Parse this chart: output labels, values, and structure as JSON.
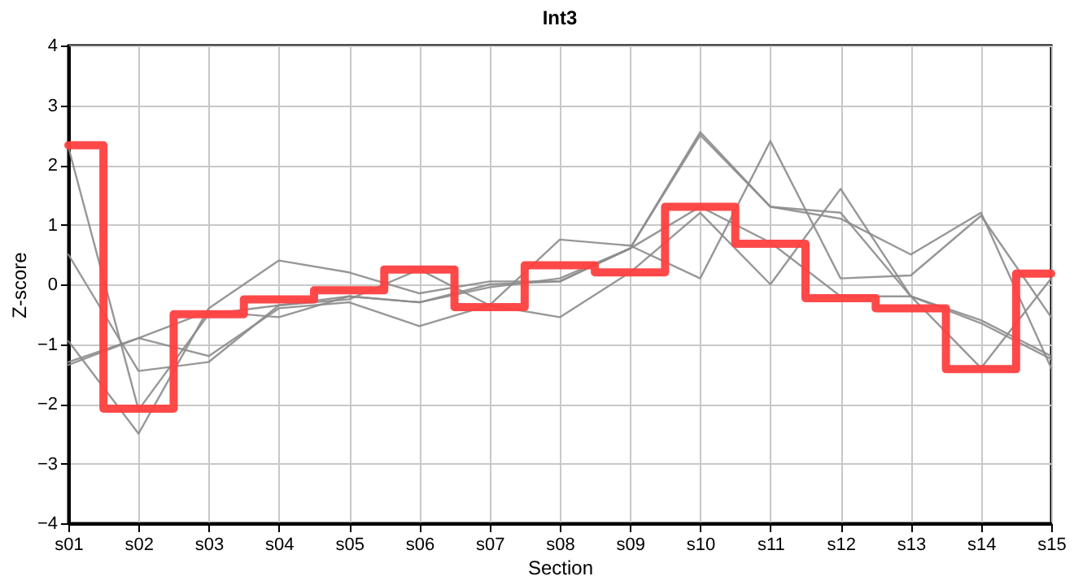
{
  "chart_data": {
    "type": "line",
    "title": "Int3",
    "xlabel": "Section",
    "ylabel": "Z-score",
    "categories": [
      "s01",
      "s02",
      "s03",
      "s04",
      "s05",
      "s06",
      "s07",
      "s08",
      "s09",
      "s10",
      "s11",
      "s12",
      "s13",
      "s14",
      "s15"
    ],
    "series": [
      {
        "color": "#8c8c8c",
        "values": [
          2.3,
          -2.1,
          -0.5,
          -0.35,
          -0.2,
          -0.3,
          -0.05,
          0.1,
          0.6,
          2.5,
          1.3,
          1.2,
          -0.2,
          -0.6,
          -1.2
        ]
      },
      {
        "color": "#8c8c8c",
        "values": [
          0.5,
          -1.45,
          -1.3,
          -0.35,
          -0.25,
          0.25,
          -0.35,
          0.75,
          0.65,
          0.1,
          2.4,
          0.1,
          0.15,
          1.15,
          -0.55
        ]
      },
      {
        "color": "#8c8c8c",
        "values": [
          -0.95,
          -2.5,
          -0.4,
          0.4,
          0.2,
          -0.15,
          0.05,
          0.05,
          0.6,
          2.55,
          1.3,
          1.1,
          0.5,
          1.2,
          -1.4
        ]
      },
      {
        "color": "#8c8c8c",
        "values": [
          -1.35,
          -0.9,
          -0.45,
          -0.55,
          -0.2,
          -0.3,
          0.0,
          0.05,
          0.6,
          1.3,
          0.7,
          -0.2,
          -0.2,
          -0.65,
          -1.25
        ]
      },
      {
        "color": "#8c8c8c",
        "values": [
          -1.3,
          -0.9,
          -1.2,
          -0.4,
          -0.3,
          -0.7,
          -0.35,
          -0.55,
          0.2,
          1.2,
          0.0,
          1.6,
          -0.2,
          -1.4,
          0.1
        ]
      },
      {
        "type": "step",
        "color": "#ff3f3f",
        "values": [
          2.33,
          -2.08,
          -0.5,
          -0.25,
          -0.1,
          0.25,
          -0.38,
          0.32,
          0.2,
          1.3,
          0.68,
          -0.23,
          -0.4,
          -1.42,
          0.18
        ]
      }
    ],
    "ylim": [
      -4,
      4
    ],
    "yticks": [
      -4,
      -3,
      -2,
      -1,
      0,
      1,
      2,
      3,
      4
    ],
    "grid": true
  }
}
